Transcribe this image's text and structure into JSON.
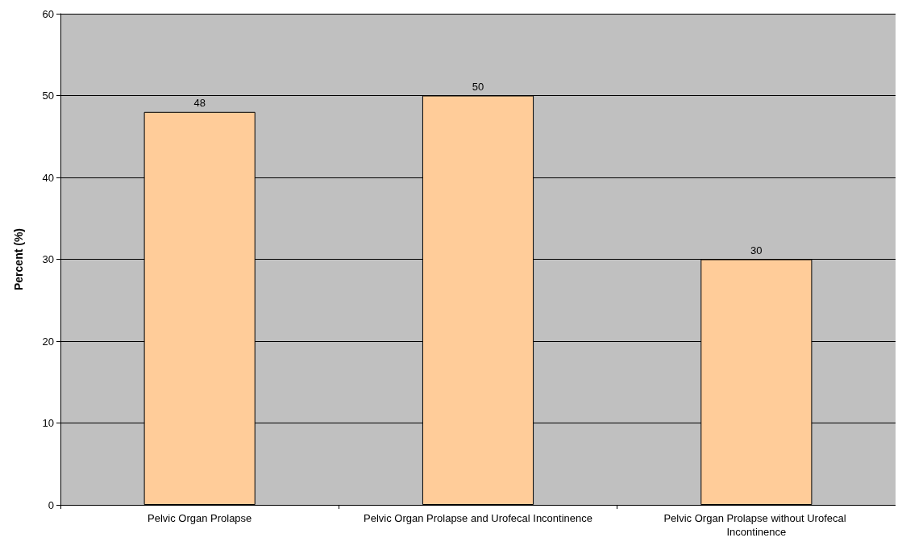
{
  "chart_data": {
    "type": "bar",
    "ylabel": "Percent (%)",
    "categories": [
      "Pelvic Organ Prolapse",
      "Pelvic Organ Prolapse and Urofecal Incontinence",
      "Pelvic Organ Prolapse without Urofecal Incontinence"
    ],
    "values": [
      48,
      50,
      30
    ],
    "color": "#ffcc99",
    "ylim": [
      0,
      60
    ],
    "yticks": [
      0,
      10,
      20,
      30,
      40,
      50,
      60
    ],
    "grid": "y",
    "data_labels": true
  }
}
